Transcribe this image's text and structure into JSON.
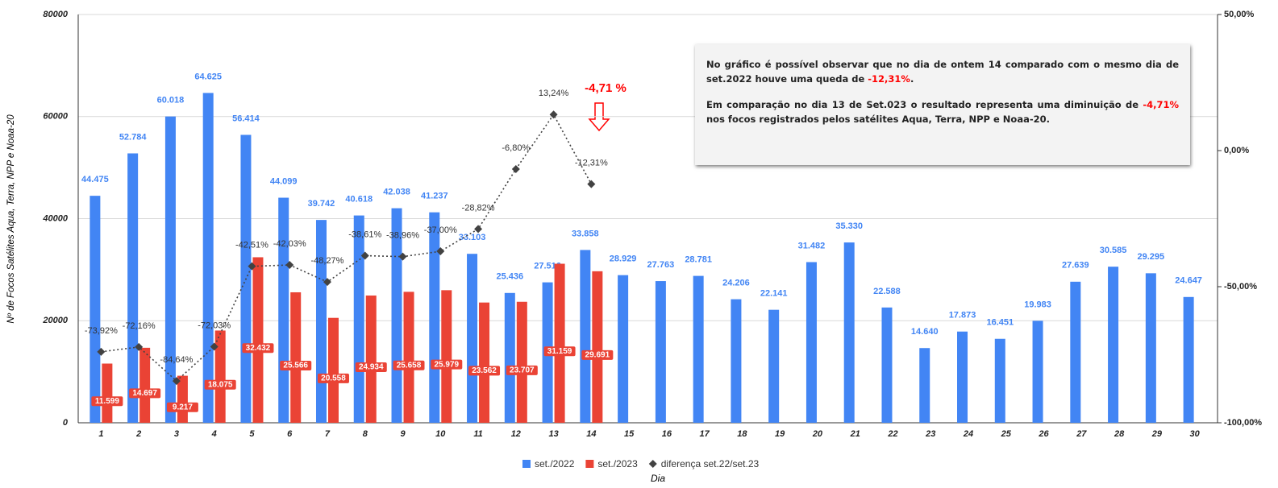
{
  "chart_data": {
    "type": "bar",
    "y_label": "Nº de Focos Satélites Aqua, Terra, NPP e Noaa-20",
    "x_label": "Dia",
    "categories": [
      "1",
      "2",
      "3",
      "4",
      "5",
      "6",
      "7",
      "8",
      "9",
      "10",
      "11",
      "12",
      "13",
      "14",
      "15",
      "16",
      "17",
      "18",
      "19",
      "20",
      "21",
      "22",
      "23",
      "24",
      "25",
      "26",
      "27",
      "28",
      "29",
      "30"
    ],
    "ylim": [
      0,
      80000
    ],
    "yticks": [
      0,
      20000,
      40000,
      60000,
      80000
    ],
    "y2lim": [
      -100,
      50
    ],
    "y2ticks": [
      {
        "value": -100,
        "label": "-100,00%"
      },
      {
        "value": -50,
        "label": "-50,00%"
      },
      {
        "value": 0,
        "label": "0,00%"
      },
      {
        "value": 50,
        "label": "50,00%"
      }
    ],
    "grid": true,
    "series": [
      {
        "name": "set./2022",
        "type": "bar",
        "color": "#4285f4",
        "values": [
          44475,
          52784,
          60018,
          64625,
          56414,
          44099,
          39742,
          40618,
          42038,
          41237,
          33103,
          25436,
          27516,
          33858,
          28929,
          27763,
          28781,
          24206,
          22141,
          31482,
          35330,
          22588,
          14640,
          17873,
          16451,
          19983,
          27639,
          30585,
          29295,
          24647
        ],
        "value_labels": [
          "44.475",
          "52.784",
          "60.018",
          "64.625",
          "56.414",
          "44.099",
          "39.742",
          "40.618",
          "42.038",
          "41.237",
          "33.103",
          "25.436",
          "27.516",
          "33.858",
          "28.929",
          "27.763",
          "28.781",
          "24.206",
          "22.141",
          "31.482",
          "35.330",
          "22.588",
          "14.640",
          "17.873",
          "16.451",
          "19.983",
          "27.639",
          "30.585",
          "29.295",
          "24.647"
        ]
      },
      {
        "name": "set./2023",
        "type": "bar",
        "color": "#ea4335",
        "values": [
          11599,
          14697,
          9217,
          18075,
          32432,
          25566,
          20558,
          24934,
          25658,
          25979,
          23562,
          23707,
          31159,
          29691,
          null,
          null,
          null,
          null,
          null,
          null,
          null,
          null,
          null,
          null,
          null,
          null,
          null,
          null,
          null,
          null
        ],
        "value_labels": [
          "11.599",
          "14.697",
          "9.217",
          "18.075",
          "32.432",
          "25.566",
          "20.558",
          "24.934",
          "25.658",
          "25.979",
          "23.562",
          "23.707",
          "31.159",
          "29.691",
          null,
          null,
          null,
          null,
          null,
          null,
          null,
          null,
          null,
          null,
          null,
          null,
          null,
          null,
          null,
          null
        ]
      },
      {
        "name": "diferença set.22/set.23",
        "type": "line",
        "axis": "y2",
        "color": "#424242",
        "values": [
          -73.92,
          -72.16,
          -84.64,
          -72.03,
          -42.51,
          -42.03,
          -48.27,
          -38.61,
          -38.96,
          -37.0,
          -28.82,
          -6.8,
          13.24,
          -12.31,
          null,
          null,
          null,
          null,
          null,
          null,
          null,
          null,
          null,
          null,
          null,
          null,
          null,
          null,
          null,
          null
        ],
        "value_labels": [
          "-73,92%",
          "-72,16%",
          "-84,64%",
          "-72,03%",
          "-42,51%",
          "-42,03%",
          "-48,27%",
          "-38,61%",
          "-38,96%",
          "-37,00%",
          "-28,82%",
          "-6,80%",
          "13,24%",
          "-12,31%",
          null,
          null,
          null,
          null,
          null,
          null,
          null,
          null,
          null,
          null,
          null,
          null,
          null,
          null,
          null,
          null
        ]
      }
    ],
    "callout": "-4,71 %",
    "annotation": {
      "highlight_color": "#ff0000",
      "paragraphs": [
        {
          "before": "No gráfico é possível observar que no dia de ontem 14 comparado com o mesmo dia de set.2022  houve uma queda  de ",
          "highlight": "-12,31%",
          "after": "."
        },
        {
          "before": "Em comparação no dia 13 de Set.023 o resultado representa uma diminuição de ",
          "highlight": "-4,71%",
          "after": " nos focos registrados pelos satélites Aqua, Terra, NPP e Noaa-20."
        }
      ]
    }
  }
}
